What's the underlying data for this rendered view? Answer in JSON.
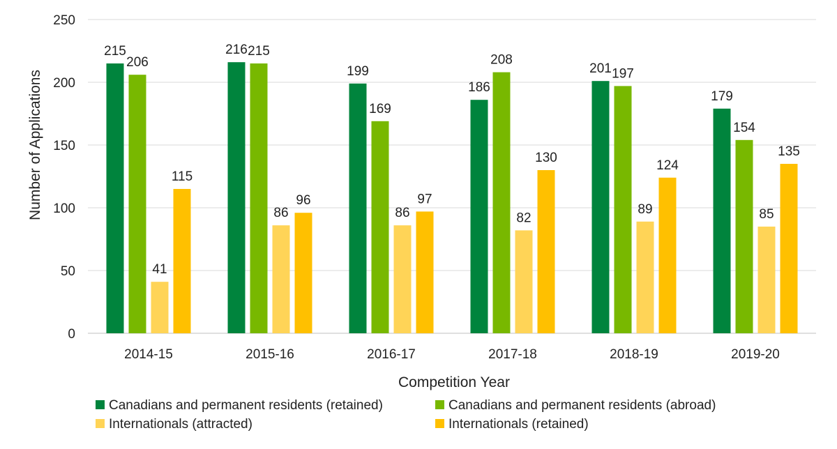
{
  "chart_data": {
    "type": "bar",
    "title": "",
    "xlabel": "Competition Year",
    "ylabel": "Number of Applications",
    "ylim": [
      0,
      250
    ],
    "yticks": [
      0,
      50,
      100,
      150,
      200,
      250
    ],
    "grid": true,
    "legend_position": "bottom",
    "categories": [
      "2014-15",
      "2015-16",
      "2016-17",
      "2017-18",
      "2018-19",
      "2019-20"
    ],
    "series": [
      {
        "name": "Canadians and permanent residents (retained)",
        "color": "#00843D",
        "values": [
          215,
          216,
          199,
          186,
          201,
          179
        ]
      },
      {
        "name": "Canadians and permanent residents (abroad)",
        "color": "#78B800",
        "values": [
          206,
          215,
          169,
          208,
          197,
          154
        ]
      },
      {
        "name": "Internationals (attracted)",
        "color": "#FFD457",
        "values": [
          41,
          86,
          86,
          82,
          89,
          85
        ]
      },
      {
        "name": "Internationals (retained)",
        "color": "#FFC000",
        "values": [
          115,
          96,
          97,
          130,
          124,
          135
        ]
      }
    ]
  }
}
